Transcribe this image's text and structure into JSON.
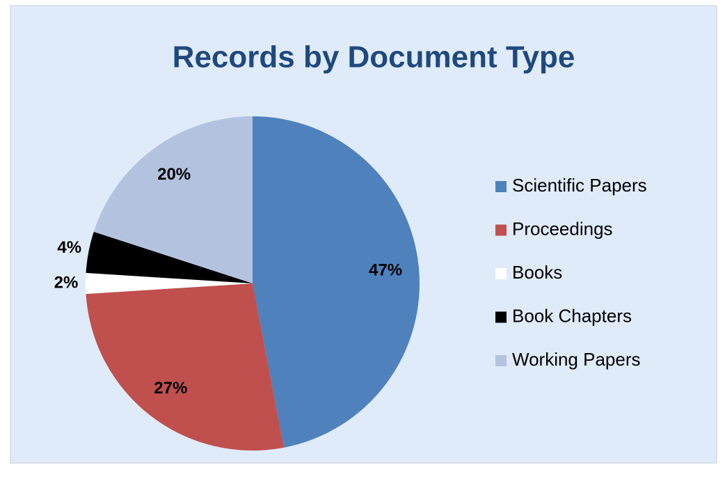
{
  "chart_data": {
    "type": "pie",
    "title": "Records by Document Type",
    "categories": [
      "Scientific Papers",
      "Proceedings",
      "Books",
      "Book Chapters",
      "Working Papers"
    ],
    "values": [
      47,
      27,
      2,
      4,
      20
    ],
    "value_labels": [
      "47%",
      "27%",
      "2%",
      "4%",
      "20%"
    ],
    "colors": [
      "#4f81bd",
      "#c0504d",
      "#ffffff",
      "#000000",
      "#b3c3df"
    ],
    "legend": "right"
  }
}
